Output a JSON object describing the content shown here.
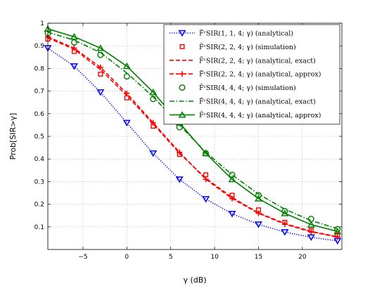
{
  "chart_data": {
    "type": "line",
    "title": "",
    "xlabel": "γ (dB)",
    "ylabel": "Prob[SIR>γ]",
    "xlim": [
      -9,
      24.5
    ],
    "ylim": [
      0,
      1
    ],
    "xticks": [
      -5,
      0,
      5,
      10,
      15,
      20
    ],
    "yticks": [
      0.1,
      0.2,
      0.3,
      0.4,
      0.5,
      0.6,
      0.7,
      0.8,
      0.9,
      1
    ],
    "xtick_labels": [
      "−5",
      "0",
      "5",
      "10",
      "15",
      "20"
    ],
    "ytick_labels": [
      "0.1",
      "0.2",
      "0.3",
      "0.4",
      "0.5",
      "0.6",
      "0.7",
      "0.8",
      "0.9",
      "1"
    ],
    "grid": true,
    "legend_position": "top-right",
    "series": [
      {
        "name": "F̄ᶜSIR(1, 1, 4; γ) (analytical)",
        "color": "#0000ff",
        "line": "dotted",
        "marker": "triangle-down",
        "x": [
          -9,
          -6,
          -3,
          0,
          3,
          6,
          9,
          12,
          15,
          18,
          21,
          24
        ],
        "y": [
          0.89,
          0.81,
          0.695,
          0.56,
          0.425,
          0.31,
          0.223,
          0.158,
          0.111,
          0.077,
          0.054,
          0.038
        ]
      },
      {
        "name": "F̄ᶜSIR(2, 2, 4; γ) (simulation)",
        "color": "#ff0000",
        "line": "none",
        "marker": "square",
        "x": [
          -9,
          -6,
          -3,
          0,
          3,
          6,
          9,
          12,
          15,
          18,
          21,
          24
        ],
        "y": [
          0.93,
          0.875,
          0.775,
          0.67,
          0.545,
          0.42,
          0.33,
          0.24,
          0.175,
          0.12,
          0.085,
          0.065
        ]
      },
      {
        "name": "F̄ᶜSIR(2, 2, 4; γ) (analytical, exact)",
        "color": "#ff0000",
        "line": "dashed",
        "marker": "none",
        "x": [
          -9,
          -6,
          -3,
          0,
          3,
          6,
          9,
          12,
          15,
          18,
          21,
          24
        ],
        "y": [
          0.935,
          0.885,
          0.795,
          0.68,
          0.555,
          0.425,
          0.315,
          0.23,
          0.162,
          0.115,
          0.08,
          0.057
        ]
      },
      {
        "name": "F̄ᶜSIR(2, 2, 4; γ) (analytical, approx)",
        "color": "#ff0000",
        "line": "dashed",
        "marker": "plus",
        "x": [
          -9,
          -6,
          -3,
          0,
          3,
          6,
          9,
          12,
          15,
          18,
          21,
          24
        ],
        "y": [
          0.94,
          0.89,
          0.805,
          0.69,
          0.56,
          0.43,
          0.31,
          0.225,
          0.16,
          0.112,
          0.078,
          0.055
        ]
      },
      {
        "name": "F̄ᶜSIR(4, 4, 4; γ) (simulation)",
        "color": "#008000",
        "line": "none",
        "marker": "circle",
        "x": [
          -9,
          -6,
          -3,
          0,
          3,
          6,
          9,
          12,
          15,
          18,
          21,
          24
        ],
        "y": [
          0.955,
          0.915,
          0.86,
          0.765,
          0.665,
          0.54,
          0.425,
          0.33,
          0.24,
          0.17,
          0.135,
          0.09
        ]
      },
      {
        "name": "F̄ᶜSIR(4, 4, 4; γ) (analytical, exact)",
        "color": "#008000",
        "line": "dashdot",
        "marker": "none",
        "x": [
          -9,
          -6,
          -3,
          0,
          3,
          6,
          9,
          12,
          15,
          18,
          21,
          24
        ],
        "y": [
          0.96,
          0.925,
          0.87,
          0.78,
          0.675,
          0.55,
          0.43,
          0.33,
          0.245,
          0.178,
          0.128,
          0.092
        ]
      },
      {
        "name": "F̄ᶜSIR(4, 4, 4; γ) (analytical, approx)",
        "color": "#008000",
        "line": "solid",
        "marker": "triangle-up",
        "x": [
          -9,
          -6,
          -3,
          0,
          3,
          6,
          9,
          12,
          15,
          18,
          21,
          24
        ],
        "y": [
          0.975,
          0.94,
          0.89,
          0.81,
          0.695,
          0.56,
          0.425,
          0.31,
          0.225,
          0.16,
          0.11,
          0.08
        ]
      }
    ]
  }
}
